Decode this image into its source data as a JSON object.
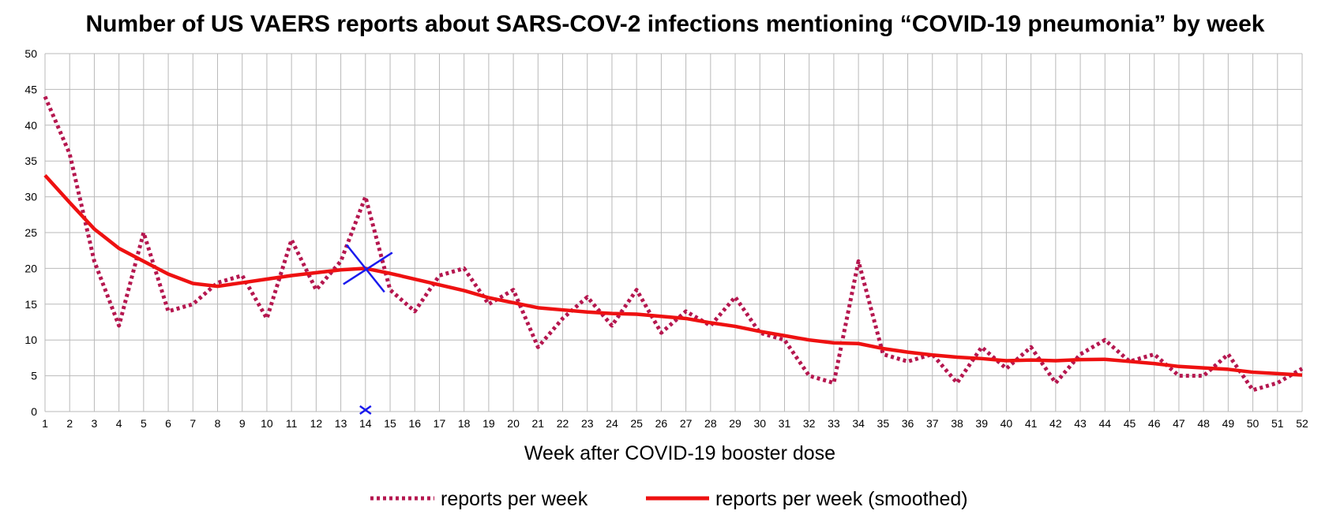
{
  "chart_data": {
    "type": "line",
    "title": "Number of US VAERS reports about SARS-COV-2 infections mentioning “COVID-19 pneumonia” by week",
    "xlabel": "Week after COVID-19 booster dose",
    "ylabel": "",
    "x": [
      1,
      2,
      3,
      4,
      5,
      6,
      7,
      8,
      9,
      10,
      11,
      12,
      13,
      14,
      15,
      16,
      17,
      18,
      19,
      20,
      21,
      22,
      23,
      24,
      25,
      26,
      27,
      28,
      29,
      30,
      31,
      32,
      33,
      34,
      35,
      36,
      37,
      38,
      39,
      40,
      41,
      42,
      43,
      44,
      45,
      46,
      47,
      48,
      49,
      50,
      51,
      52
    ],
    "xlim": [
      1,
      52
    ],
    "ylim": [
      0,
      50
    ],
    "yticks": [
      0,
      5,
      10,
      15,
      20,
      25,
      30,
      35,
      40,
      45,
      50
    ],
    "grid": true,
    "legend_position": "bottom",
    "series": [
      {
        "name": "reports per week",
        "style": "dotted",
        "color": "#b5174f",
        "values": [
          44,
          36,
          21,
          12,
          25,
          14,
          15,
          18,
          19,
          13,
          24,
          17,
          21,
          30,
          17,
          14,
          19,
          20,
          15,
          17,
          9,
          13,
          16,
          12,
          17,
          11,
          14,
          12,
          16,
          11,
          10,
          5,
          4,
          21,
          8,
          7,
          8,
          4,
          9,
          6,
          9,
          4,
          8,
          10,
          7,
          8,
          5,
          5,
          8,
          3,
          4,
          6
        ]
      },
      {
        "name": "reports per week (smoothed)",
        "style": "solid",
        "color": "#ee1111",
        "values": [
          33,
          29.2,
          25.5,
          22.8,
          21,
          19.2,
          17.9,
          17.5,
          18,
          18.5,
          19,
          19.4,
          19.8,
          20,
          19.3,
          18.5,
          17.7,
          16.9,
          15.9,
          15.2,
          14.5,
          14.2,
          13.9,
          13.7,
          13.6,
          13.3,
          13,
          12.4,
          11.9,
          11.2,
          10.6,
          10,
          9.6,
          9.5,
          8.8,
          8.3,
          7.9,
          7.6,
          7.4,
          7.1,
          7.2,
          7.1,
          7.25,
          7.3,
          7,
          6.7,
          6.3,
          6.1,
          5.9,
          5.5,
          5.3,
          5.1
        ]
      }
    ],
    "annotations": [
      {
        "type": "cross-marker",
        "x": 14,
        "y": 20,
        "color": "#1a1aee",
        "size": "large"
      },
      {
        "type": "x-marker",
        "x": 14,
        "y": 0,
        "color": "#1a1aee",
        "size": "small"
      }
    ]
  }
}
